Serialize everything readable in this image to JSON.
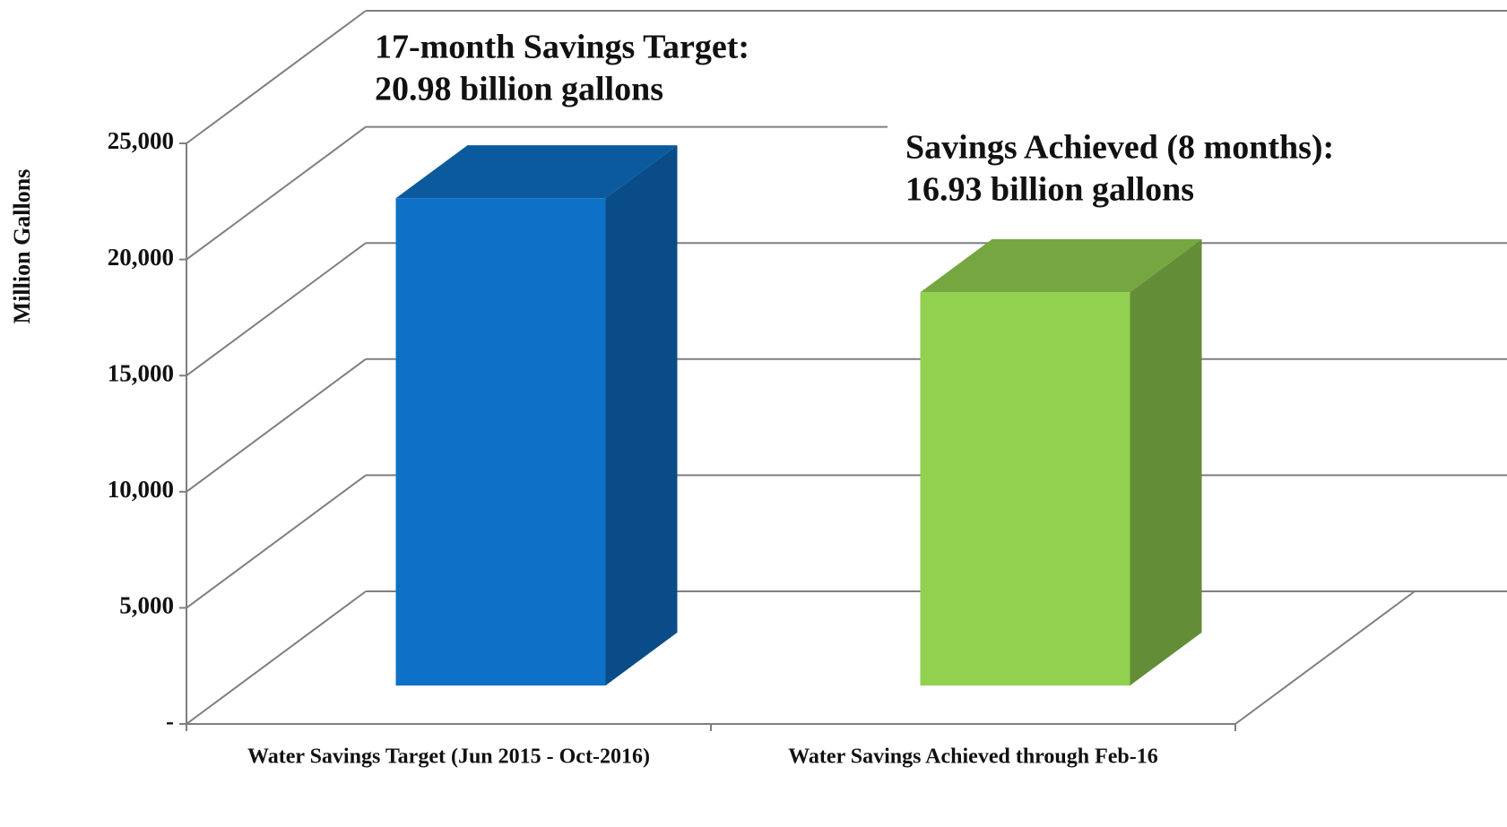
{
  "chart_data": {
    "type": "bar3d",
    "categories": [
      "Water Savings Target (Jun  2015 - Oct-2016)",
      "Water Savings Achieved through Feb-16"
    ],
    "values": [
      20980,
      16930
    ],
    "colors": [
      "#0e70c6",
      "#92d050"
    ],
    "y_label": "Million Gallons",
    "ylim": [
      0,
      25000
    ],
    "yticks": [
      {
        "value": 0,
        "label": "-"
      },
      {
        "value": 5000,
        "label": "5,000"
      },
      {
        "value": 10000,
        "label": "10,000"
      },
      {
        "value": 15000,
        "label": "15,000"
      },
      {
        "value": 20000,
        "label": "20,000"
      },
      {
        "value": 25000,
        "label": "25,000"
      }
    ],
    "grid": true,
    "annotations": [
      {
        "lines": [
          "17-month Savings Target:",
          "20.98 billion gallons"
        ]
      },
      {
        "lines": [
          "Savings Achieved (8 months):",
          "16.93 billion gallons"
        ]
      }
    ]
  }
}
